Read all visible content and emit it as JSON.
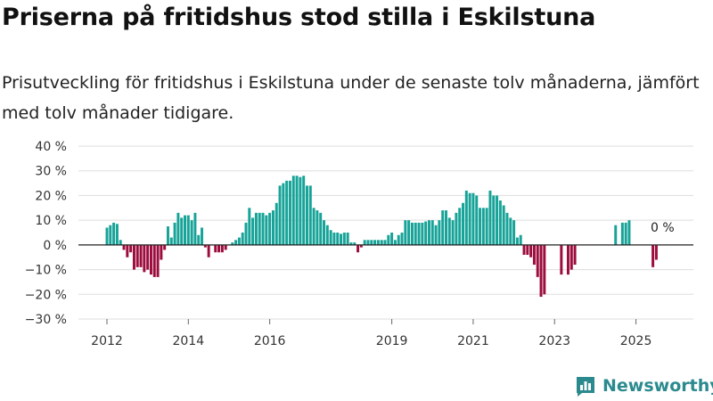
{
  "header": {
    "title": "Priserna på fritidshus stod stilla i Eskilstuna",
    "subtitle": "Prisutveckling för fritidshus i Eskilstuna under de senaste tolv månaderna, jämfört med tolv månader tidigare."
  },
  "brand": {
    "name": "Newsworthy",
    "icon": "newsworthy-logo-icon",
    "color": "#2b8a8e"
  },
  "chart_data": {
    "type": "bar",
    "title": "Priserna på fritidshus stod stilla i Eskilstuna",
    "xlabel": "",
    "ylabel": "",
    "ylim": [
      -30,
      40
    ],
    "y_ticks": [
      -30,
      -20,
      -10,
      0,
      10,
      20,
      30,
      40
    ],
    "y_tick_labels": [
      "−30 %",
      "−20 %",
      "−10 %",
      "0 %",
      "10 %",
      "20 %",
      "30 %",
      "40 %"
    ],
    "x_ticks": [
      2012,
      2014,
      2016,
      2019,
      2021,
      2023,
      2025
    ],
    "x_tick_labels": [
      "2012",
      "2014",
      "2016",
      "2019",
      "2021",
      "2023",
      "2025"
    ],
    "start": "2012-01",
    "end": "2025-09",
    "grid": true,
    "colors": {
      "positive": "#17a398",
      "negative": "#9c0c3d"
    },
    "annotation": {
      "label": "0 %",
      "period": "2025-09"
    },
    "series": [
      {
        "name": "Prisutveckling",
        "unit": "%",
        "values": [
          7,
          8,
          9,
          8.5,
          2,
          -2,
          -5,
          -3,
          -10,
          -9,
          -9,
          -11,
          -10,
          -12,
          -13,
          -13,
          -6,
          -2,
          7.5,
          3,
          9,
          13,
          11,
          12,
          12,
          10,
          13,
          4,
          7,
          -1,
          -5,
          0,
          -3,
          -3,
          -3,
          -2,
          0,
          1,
          2,
          3,
          5,
          9,
          15,
          11,
          13,
          13,
          13,
          12,
          13,
          14,
          17,
          24,
          25,
          26,
          26,
          28,
          28,
          27.5,
          28,
          24,
          24,
          15,
          14,
          13,
          10,
          8,
          6,
          5,
          5,
          4.5,
          5,
          5,
          1,
          1,
          -3,
          -1,
          2,
          2,
          2,
          2,
          2,
          2,
          2,
          4,
          5,
          2,
          4,
          5,
          10,
          10,
          9,
          9,
          9,
          9,
          9.5,
          10,
          10,
          8,
          10,
          14,
          14,
          11,
          10,
          13,
          15,
          17,
          22,
          21,
          21,
          20,
          15,
          15,
          15,
          22,
          20,
          20,
          18,
          16,
          13,
          11,
          10,
          3,
          4,
          -4,
          -4,
          -5,
          -8,
          -13,
          -21,
          -20,
          null,
          null,
          null,
          null,
          -12,
          null,
          -12,
          -10,
          -8,
          null,
          null,
          null,
          null,
          null,
          null,
          null,
          null,
          null,
          null,
          null,
          8,
          null,
          9,
          9,
          10,
          null,
          null,
          null,
          null,
          null,
          null,
          -9,
          -6,
          0
        ]
      }
    ]
  }
}
